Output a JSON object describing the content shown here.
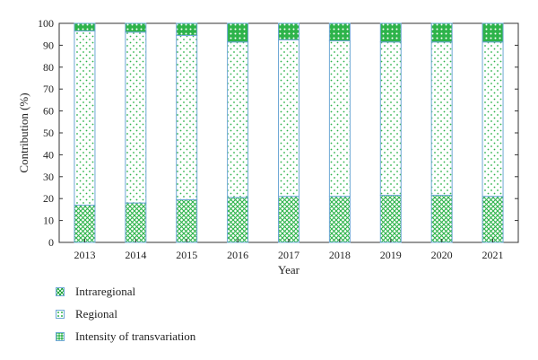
{
  "chart_data": {
    "type": "bar",
    "stacked": true,
    "xlabel": "Year",
    "ylabel": "Contribution (%)",
    "ylim": [
      0,
      100
    ],
    "yticks": [
      0,
      10,
      20,
      30,
      40,
      50,
      60,
      70,
      80,
      90,
      100
    ],
    "categories": [
      "2013",
      "2014",
      "2015",
      "2016",
      "2017",
      "2018",
      "2019",
      "2020",
      "2021"
    ],
    "series": [
      {
        "name": "Intraregional",
        "values": [
          17,
          18,
          19.5,
          20.5,
          21,
          21,
          21.5,
          21.5,
          21
        ],
        "pattern": "crosshatch"
      },
      {
        "name": "Regional",
        "values": [
          79.5,
          78,
          75,
          71,
          71.5,
          71,
          70,
          70,
          70.5
        ],
        "pattern": "dots"
      },
      {
        "name": "Intensity of transvariation",
        "values": [
          3.5,
          4,
          5.5,
          8.5,
          7.5,
          8,
          8.5,
          8.5,
          8.5
        ],
        "pattern": "diamond"
      }
    ],
    "colors": {
      "outline": "#6fa8d6",
      "fill": "#2db34a",
      "background": "#ffffff"
    },
    "legend_position": "bottom-left",
    "grid": false
  }
}
